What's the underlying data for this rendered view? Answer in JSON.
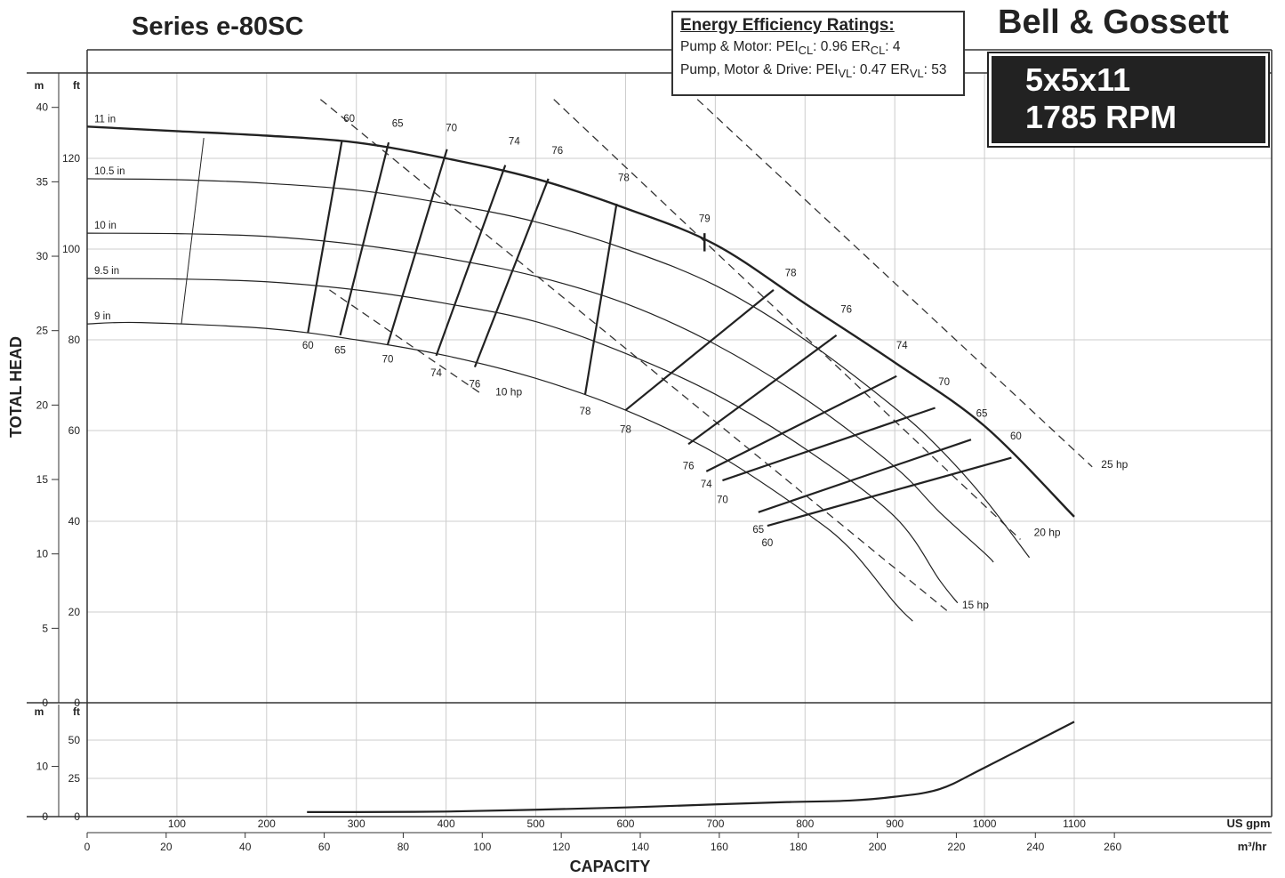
{
  "header": {
    "series": "Series e-80SC",
    "brand": "Bell & Gossett",
    "model": "5x5x11",
    "speed": "1785 RPM"
  },
  "efficiency": {
    "heading": "Energy Efficiency Ratings:",
    "line1": "Pump & Motor: PEI",
    "line1_sub": "CL",
    "line1_val": ":  0.96   ER",
    "line1_sub2": "CL",
    "line1_val2": ": 4",
    "line2": "Pump, Motor & Drive: PEI",
    "line2_sub": "VL",
    "line2_val": ": 0.47   ER",
    "line2_sub2": "VL",
    "line2_val2": ": 53"
  },
  "chart_data": {
    "type": "line",
    "ylabel": "TOTAL HEAD",
    "xlabel": "CAPACITY",
    "x_unit": "US gpm",
    "x_unit_alt": "m³/hr",
    "y_unit_m": "m",
    "y_unit_ft": "ft",
    "xlim": [
      0,
      1100
    ],
    "ylim_ft": [
      0,
      133
    ],
    "x_ticks_gpm": [
      100,
      200,
      300,
      400,
      500,
      600,
      700,
      800,
      900,
      1000,
      1100
    ],
    "x_ticks_m3hr": [
      0,
      20,
      40,
      60,
      80,
      100,
      120,
      140,
      160,
      180,
      200,
      220,
      240,
      260
    ],
    "y_ticks_m": [
      0,
      5,
      10,
      15,
      20,
      25,
      30,
      35,
      40
    ],
    "y_ticks_ft": [
      0,
      20,
      40,
      60,
      80,
      100,
      120
    ],
    "impellers": [
      {
        "name": "11 in",
        "points": [
          [
            0,
            127
          ],
          [
            100,
            126
          ],
          [
            200,
            125
          ],
          [
            300,
            123.5
          ],
          [
            400,
            120
          ],
          [
            500,
            115.5
          ],
          [
            600,
            109
          ],
          [
            700,
            101
          ],
          [
            800,
            88
          ],
          [
            900,
            75
          ],
          [
            1000,
            61
          ],
          [
            1100,
            41
          ]
        ]
      },
      {
        "name": "10.5 in",
        "points": [
          [
            0,
            115.5
          ],
          [
            100,
            115.3
          ],
          [
            200,
            114.5
          ],
          [
            300,
            113
          ],
          [
            400,
            110
          ],
          [
            500,
            106
          ],
          [
            600,
            100
          ],
          [
            700,
            92
          ],
          [
            800,
            80
          ],
          [
            900,
            65
          ],
          [
            950,
            56
          ],
          [
            1000,
            45
          ],
          [
            1050,
            32
          ]
        ]
      },
      {
        "name": "10 in",
        "points": [
          [
            0,
            103.5
          ],
          [
            100,
            103.4
          ],
          [
            200,
            102.8
          ],
          [
            300,
            101
          ],
          [
            400,
            98
          ],
          [
            500,
            94
          ],
          [
            600,
            88
          ],
          [
            700,
            79
          ],
          [
            800,
            67
          ],
          [
            900,
            52
          ],
          [
            950,
            42
          ],
          [
            1000,
            33
          ],
          [
            1010,
            31
          ]
        ]
      },
      {
        "name": "9.5 in",
        "points": [
          [
            0,
            93.5
          ],
          [
            100,
            93.4
          ],
          [
            200,
            92.8
          ],
          [
            300,
            91
          ],
          [
            400,
            88
          ],
          [
            500,
            84
          ],
          [
            600,
            77
          ],
          [
            700,
            68
          ],
          [
            800,
            56
          ],
          [
            900,
            41
          ],
          [
            950,
            27
          ],
          [
            970,
            22
          ]
        ]
      },
      {
        "name": "9 in",
        "points": [
          [
            0,
            83.5
          ],
          [
            60,
            83.8
          ],
          [
            200,
            82.5
          ],
          [
            300,
            80
          ],
          [
            400,
            76.5
          ],
          [
            500,
            71.5
          ],
          [
            600,
            64.5
          ],
          [
            700,
            55
          ],
          [
            800,
            42
          ],
          [
            850,
            34
          ],
          [
            900,
            22
          ],
          [
            920,
            18
          ]
        ]
      }
    ],
    "efficiency_curves": [
      {
        "label": "60",
        "points": [
          [
            284,
            124
          ],
          [
            246,
            81.5
          ]
        ]
      },
      {
        "label": "65",
        "points": [
          [
            336,
            123.5
          ],
          [
            282,
            81
          ]
        ]
      },
      {
        "label": "70",
        "points": [
          [
            401,
            122
          ],
          [
            335,
            79
          ]
        ]
      },
      {
        "label": "74",
        "points": [
          [
            466,
            118.5
          ],
          [
            389,
            76.5
          ]
        ]
      },
      {
        "label": "76",
        "points": [
          [
            514,
            115.5
          ],
          [
            432,
            74
          ]
        ]
      },
      {
        "label": "78",
        "points": [
          [
            590,
            110
          ],
          [
            555,
            68
          ]
        ]
      },
      {
        "label": "78",
        "points": [
          [
            765,
            91
          ],
          [
            600,
            64.5
          ]
        ]
      },
      {
        "label": "76",
        "points": [
          [
            835,
            81
          ],
          [
            670,
            57
          ]
        ]
      },
      {
        "label": "74",
        "points": [
          [
            902,
            72
          ],
          [
            690,
            51
          ]
        ]
      },
      {
        "label": "70",
        "points": [
          [
            945,
            65
          ],
          [
            708,
            49
          ]
        ]
      },
      {
        "label": "65",
        "points": [
          [
            985,
            58
          ],
          [
            748,
            42
          ]
        ]
      },
      {
        "label": "60",
        "points": [
          [
            1030,
            54
          ],
          [
            758,
            39
          ]
        ]
      }
    ],
    "efficiency_labels_top": [
      "60",
      "65",
      "70",
      "74",
      "76",
      "78",
      "79",
      "78",
      "76",
      "74",
      "70",
      "65",
      "60"
    ],
    "power_lines": [
      {
        "label": "10 hp"
      },
      {
        "label": "15 hp"
      },
      {
        "label": "20 hp"
      },
      {
        "label": "25 hp"
      }
    ],
    "npsh": {
      "unit_m": "m",
      "unit_ft": "ft",
      "y_ticks_ft": [
        0,
        25,
        50
      ],
      "y_ticks_m": [
        0,
        10
      ],
      "points": [
        [
          245,
          3
        ],
        [
          300,
          3
        ],
        [
          400,
          3.3
        ],
        [
          500,
          4.5
        ],
        [
          600,
          6
        ],
        [
          700,
          8
        ],
        [
          780,
          9.5
        ],
        [
          850,
          10.5
        ],
        [
          900,
          13
        ],
        [
          950,
          18
        ],
        [
          1000,
          32
        ],
        [
          1100,
          62
        ]
      ]
    }
  }
}
